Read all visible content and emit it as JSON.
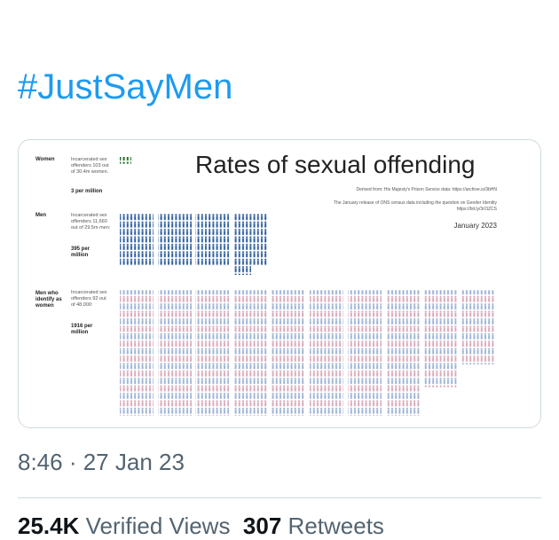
{
  "tweet": {
    "hashtag": "#JustSayMen",
    "timestamp": "8:46 · 27 Jan 23",
    "stats": [
      {
        "value": "25.4K",
        "label": "Verified Views"
      },
      {
        "value": "307",
        "label": "Retweets"
      }
    ]
  },
  "infographic": {
    "title": "Rates of sexual offending",
    "source": "Derived from: His Majesty's Prison Service data: https://archive.is/3bHN",
    "census": "The January release of ONS census data including the question on Gender Identity https://bit.ly/3rI3ZCS",
    "date": "January 2023",
    "groups": [
      {
        "label": "Women",
        "detail": "Incarcerated sex offenders 103 out of 30.4m women.",
        "rate": "3 per million"
      },
      {
        "label": "Men",
        "detail": "Incarcerated sex offenders 11,660 out of 29.5m men:",
        "rate": "395 per million"
      },
      {
        "label": "Men who identify as women",
        "detail": "Incarcerated sex offenders 92 out of 48,000:",
        "rate": "1916 per million"
      }
    ]
  }
}
